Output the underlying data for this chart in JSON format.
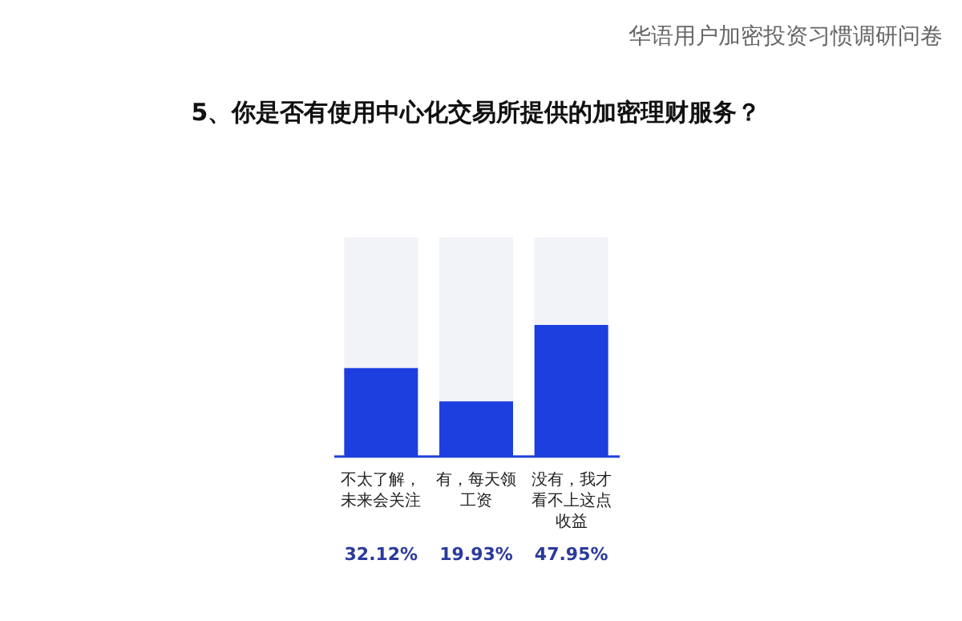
{
  "chart_data": {
    "type": "bar",
    "title": "5、你是否有使用中心化交易所提供的加密理财服务？",
    "subtitle": "华语用户加密投资习惯调研问卷",
    "categories": [
      "不太了解，未来会关注",
      "有，每天领工资",
      "没有，我才看不上这点收益"
    ],
    "values": [
      32.12,
      19.93,
      47.95
    ],
    "color": "#1d3fe0",
    "value_labels": [
      "32.12%",
      "19.93%",
      "47.95%"
    ],
    "ylim": [
      0,
      80
    ],
    "tick_labels": false,
    "grid": false
  }
}
